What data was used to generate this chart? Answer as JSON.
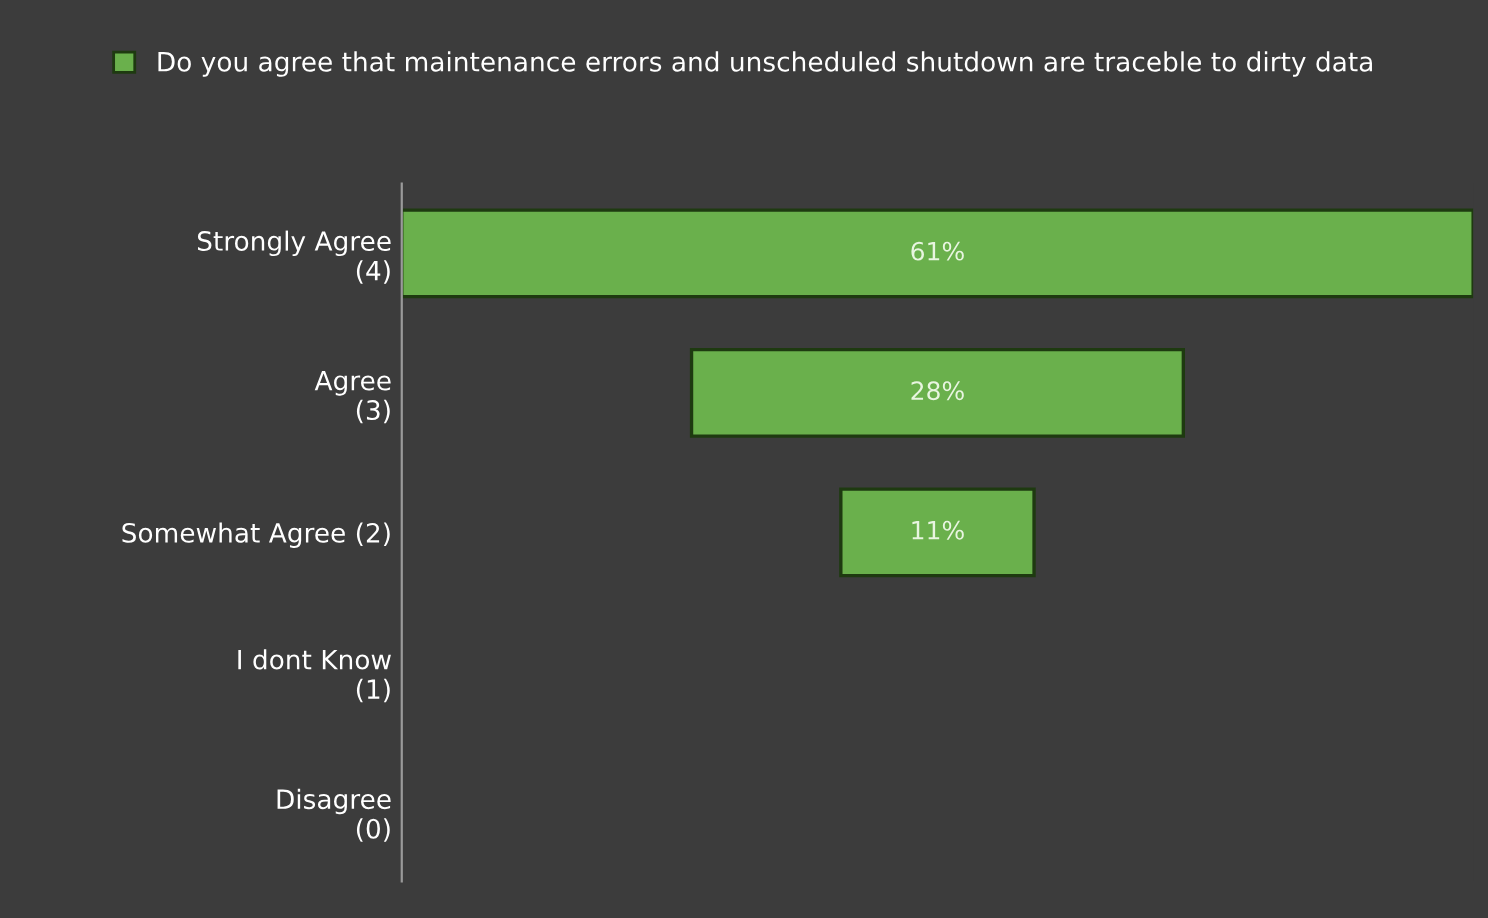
{
  "chart_data": {
    "type": "other",
    "categories": [
      "Strongly Agree\n(4)",
      "Agree\n(3)",
      "Somewhat Agree (2)",
      "I dont Know\n(1)",
      "Disagree\n(0)"
    ],
    "series": [
      {
        "name": "Do you agree that maintenance errors and unscheduled shutdown are traceble to dirty data",
        "color": "#6ab04c",
        "values": [
          61,
          28,
          11,
          null,
          null
        ],
        "value_labels": [
          "61%",
          "28%",
          "11%",
          null,
          null
        ]
      }
    ],
    "legend": "top"
  }
}
